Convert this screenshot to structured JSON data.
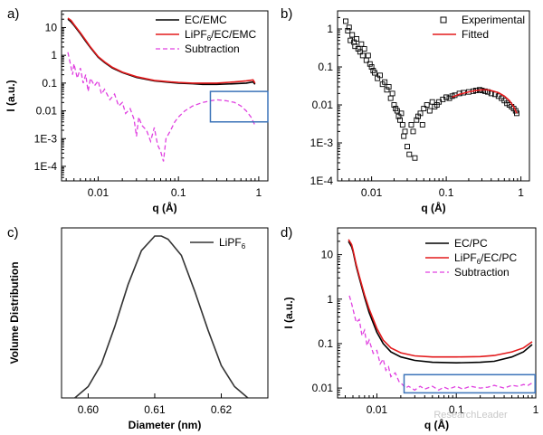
{
  "watermark": "ResearchLeader",
  "chart_data": [
    {
      "id": "a",
      "panel_label": "a)",
      "type": "line",
      "xlabel": "q (Å)",
      "ylabel": "I (a.u.)",
      "xscale": "log",
      "yscale": "log",
      "xlim": [
        0.0035,
        1.3
      ],
      "ylim": [
        3e-05,
        40
      ],
      "xticks": [
        {
          "v": 0.01,
          "label": "0.01"
        },
        {
          "v": 0.1,
          "label": "0.1"
        },
        {
          "v": 1,
          "label": "1"
        }
      ],
      "yticks": [
        {
          "v": 10,
          "label": "10"
        },
        {
          "v": 1,
          "label": "1"
        },
        {
          "v": 0.1,
          "label": "0.1"
        },
        {
          "v": 0.01,
          "label": "0.01"
        },
        {
          "v": 0.001,
          "label": "1E-3"
        },
        {
          "v": 0.0001,
          "label": "1E-4"
        }
      ],
      "legend_position": "top-right",
      "highlight_box": {
        "x": [
          0.25,
          1.3
        ],
        "y": [
          0.004,
          0.05
        ],
        "color": "#3b73b9"
      },
      "series": [
        {
          "name": "EC/EMC",
          "color": "#000000",
          "style": "solid",
          "x": [
            0.0042,
            0.0046,
            0.005,
            0.006,
            0.007,
            0.008,
            0.01,
            0.012,
            0.015,
            0.02,
            0.03,
            0.05,
            0.08,
            0.1,
            0.15,
            0.2,
            0.3,
            0.5,
            0.7,
            0.85,
            0.9
          ],
          "y": [
            20,
            16,
            12,
            6,
            3.2,
            1.9,
            0.85,
            0.55,
            0.35,
            0.24,
            0.16,
            0.12,
            0.105,
            0.1,
            0.095,
            0.09,
            0.09,
            0.095,
            0.1,
            0.11,
            0.09
          ]
        },
        {
          "name": "LiPF6/EC/EMC",
          "label_main": "LiPF",
          "label_sub": "6",
          "label_tail": "/EC/EMC",
          "color": "#e31a1c",
          "style": "solid",
          "x": [
            0.0042,
            0.0046,
            0.005,
            0.006,
            0.007,
            0.008,
            0.01,
            0.012,
            0.015,
            0.02,
            0.03,
            0.05,
            0.08,
            0.1,
            0.15,
            0.2,
            0.3,
            0.5,
            0.7,
            0.85,
            0.9
          ],
          "y": [
            22,
            18,
            13,
            6.5,
            3.5,
            2.0,
            0.9,
            0.58,
            0.37,
            0.25,
            0.17,
            0.125,
            0.11,
            0.105,
            0.1,
            0.1,
            0.1,
            0.11,
            0.12,
            0.13,
            0.1
          ]
        },
        {
          "name": "Subtraction",
          "color": "#e040e0",
          "style": "dashed",
          "x": [
            0.0042,
            0.0045,
            0.0048,
            0.005,
            0.0055,
            0.006,
            0.0065,
            0.007,
            0.0075,
            0.008,
            0.009,
            0.01,
            0.011,
            0.012,
            0.014,
            0.016,
            0.018,
            0.02,
            0.022,
            0.025,
            0.028,
            0.03,
            0.032,
            0.035,
            0.04,
            0.045,
            0.05,
            0.055,
            0.06,
            0.065,
            0.07,
            0.08,
            0.09,
            0.1,
            0.12,
            0.15,
            0.2,
            0.25,
            0.3,
            0.4,
            0.5,
            0.6,
            0.7,
            0.8,
            0.9
          ],
          "y": [
            1.3,
            0.5,
            0.2,
            0.5,
            0.15,
            0.35,
            0.1,
            0.2,
            0.05,
            0.15,
            0.08,
            0.12,
            0.04,
            0.06,
            0.025,
            0.04,
            0.015,
            0.02,
            0.008,
            0.012,
            0.005,
            0.0012,
            0.006,
            0.003,
            0.002,
            0.0008,
            0.0025,
            0.0006,
            0.00035,
            0.00015,
            0.001,
            0.002,
            0.004,
            0.006,
            0.01,
            0.015,
            0.02,
            0.023,
            0.025,
            0.023,
            0.02,
            0.015,
            0.01,
            0.006,
            0.003
          ]
        }
      ]
    },
    {
      "id": "b",
      "panel_label": "b)",
      "type": "scatter",
      "xlabel": "q (Å)",
      "ylabel": "",
      "xscale": "log",
      "yscale": "log",
      "xlim": [
        0.0035,
        1.3
      ],
      "ylim": [
        0.0001,
        3
      ],
      "xticks": [
        {
          "v": 0.01,
          "label": "0.01"
        },
        {
          "v": 0.1,
          "label": "0.1"
        },
        {
          "v": 1,
          "label": "1"
        }
      ],
      "yticks": [
        {
          "v": 1,
          "label": "1"
        },
        {
          "v": 0.1,
          "label": "0.1"
        },
        {
          "v": 0.01,
          "label": "0.01"
        },
        {
          "v": 0.001,
          "label": "1E-3"
        },
        {
          "v": 0.0001,
          "label": "1E-4"
        }
      ],
      "legend_position": "top-right",
      "series": [
        {
          "name": "Experimental",
          "color": "#000000",
          "style": "marker-square",
          "x": [
            0.0045,
            0.0048,
            0.005,
            0.0052,
            0.0055,
            0.0058,
            0.006,
            0.0063,
            0.0066,
            0.007,
            0.0073,
            0.0076,
            0.008,
            0.0085,
            0.009,
            0.0095,
            0.01,
            0.0105,
            0.011,
            0.012,
            0.013,
            0.014,
            0.015,
            0.016,
            0.017,
            0.018,
            0.019,
            0.02,
            0.021,
            0.022,
            0.023,
            0.024,
            0.025,
            0.026,
            0.027,
            0.028,
            0.03,
            0.032,
            0.034,
            0.036,
            0.038,
            0.04,
            0.042,
            0.045,
            0.048,
            0.05,
            0.055,
            0.06,
            0.065,
            0.07,
            0.075,
            0.08,
            0.09,
            0.1,
            0.11,
            0.12,
            0.13,
            0.15,
            0.17,
            0.2,
            0.23,
            0.25,
            0.28,
            0.3,
            0.33,
            0.36,
            0.4,
            0.45,
            0.5,
            0.55,
            0.6,
            0.65,
            0.7,
            0.75,
            0.8,
            0.85,
            0.88
          ],
          "y": [
            1.6,
            0.9,
            1.1,
            0.5,
            0.7,
            0.45,
            0.35,
            0.55,
            0.3,
            0.25,
            0.4,
            0.2,
            0.3,
            0.15,
            0.2,
            0.12,
            0.1,
            0.08,
            0.07,
            0.05,
            0.06,
            0.035,
            0.04,
            0.025,
            0.03,
            0.015,
            0.02,
            0.01,
            0.008,
            0.007,
            0.005,
            0.004,
            0.006,
            0.003,
            0.0015,
            0.002,
            0.0008,
            0.0005,
            0.003,
            0.002,
            0.0004,
            0.004,
            0.005,
            0.006,
            0.003,
            0.008,
            0.01,
            0.007,
            0.012,
            0.009,
            0.01,
            0.012,
            0.014,
            0.016,
            0.015,
            0.017,
            0.018,
            0.02,
            0.021,
            0.022,
            0.023,
            0.024,
            0.025,
            0.024,
            0.023,
            0.022,
            0.02,
            0.019,
            0.017,
            0.015,
            0.013,
            0.011,
            0.01,
            0.009,
            0.008,
            0.007,
            0.006
          ]
        },
        {
          "name": "Fitted",
          "color": "#e31a1c",
          "style": "solid",
          "x": [
            0.12,
            0.15,
            0.2,
            0.25,
            0.3,
            0.35,
            0.4,
            0.5,
            0.6,
            0.7,
            0.8,
            0.88
          ],
          "y": [
            0.016,
            0.019,
            0.022,
            0.024,
            0.025,
            0.025,
            0.024,
            0.021,
            0.017,
            0.013,
            0.009,
            0.006
          ]
        }
      ]
    },
    {
      "id": "c",
      "panel_label": "c)",
      "type": "line",
      "xlabel": "Diameter (nm)",
      "ylabel": "Volume Distribution",
      "xscale": "linear",
      "yscale": "linear",
      "xlim": [
        0.596,
        0.627
      ],
      "ylim": [
        0,
        1.05
      ],
      "xticks": [
        {
          "v": 0.6,
          "label": "0.60"
        },
        {
          "v": 0.61,
          "label": "0.61"
        },
        {
          "v": 0.62,
          "label": "0.62"
        }
      ],
      "yticks": [],
      "legend_position": "top-right",
      "series": [
        {
          "name": "LiPF6",
          "label_main": "LiPF",
          "label_sub": "6",
          "label_tail": "",
          "color": "#333333",
          "style": "solid",
          "x": [
            0.598,
            0.6,
            0.602,
            0.604,
            0.606,
            0.608,
            0.61,
            0.611,
            0.612,
            0.614,
            0.616,
            0.618,
            0.62,
            0.622,
            0.624
          ],
          "y": [
            0.0,
            0.07,
            0.21,
            0.44,
            0.7,
            0.91,
            1.0,
            1.0,
            0.98,
            0.88,
            0.66,
            0.42,
            0.2,
            0.07,
            0.0
          ]
        }
      ]
    },
    {
      "id": "d",
      "panel_label": "d)",
      "type": "line",
      "xlabel": "q (Å)",
      "ylabel": "I (a.u.)",
      "xscale": "log",
      "yscale": "log",
      "xlim": [
        0.0032,
        1.0
      ],
      "ylim": [
        0.006,
        40
      ],
      "xticks": [
        {
          "v": 0.01,
          "label": "0.01"
        },
        {
          "v": 0.1,
          "label": "0.1"
        },
        {
          "v": 1,
          "label": "1"
        }
      ],
      "yticks": [
        {
          "v": 10,
          "label": "10"
        },
        {
          "v": 1,
          "label": "1"
        },
        {
          "v": 0.1,
          "label": "0.1"
        },
        {
          "v": 0.01,
          "label": "0.01"
        }
      ],
      "legend_position": "top-right",
      "highlight_box": {
        "x": [
          0.022,
          0.98
        ],
        "y": [
          0.0078,
          0.02
        ],
        "color": "#3b73b9"
      },
      "series": [
        {
          "name": "EC/PC",
          "color": "#000000",
          "style": "solid",
          "x": [
            0.0044,
            0.0048,
            0.005,
            0.0055,
            0.006,
            0.007,
            0.008,
            0.01,
            0.012,
            0.015,
            0.02,
            0.03,
            0.05,
            0.1,
            0.2,
            0.3,
            0.5,
            0.7,
            0.9
          ],
          "y": [
            20,
            15,
            12,
            5.5,
            3.0,
            1.1,
            0.5,
            0.18,
            0.1,
            0.065,
            0.05,
            0.042,
            0.038,
            0.037,
            0.038,
            0.04,
            0.05,
            0.065,
            0.095
          ]
        },
        {
          "name": "LiPF6/EC/PC",
          "label_main": "LiPF",
          "label_sub": "6",
          "label_tail": "/EC/PC",
          "color": "#e31a1c",
          "style": "solid",
          "x": [
            0.0044,
            0.0048,
            0.005,
            0.0055,
            0.006,
            0.007,
            0.008,
            0.01,
            0.012,
            0.015,
            0.02,
            0.03,
            0.05,
            0.1,
            0.2,
            0.3,
            0.5,
            0.7,
            0.9
          ],
          "y": [
            22,
            17,
            13,
            6.0,
            3.3,
            1.25,
            0.6,
            0.22,
            0.12,
            0.08,
            0.062,
            0.053,
            0.05,
            0.05,
            0.051,
            0.054,
            0.065,
            0.08,
            0.11
          ]
        },
        {
          "name": "Subtraction",
          "color": "#e040e0",
          "style": "dashed",
          "x": [
            0.0045,
            0.0048,
            0.005,
            0.0055,
            0.006,
            0.0065,
            0.007,
            0.0075,
            0.008,
            0.009,
            0.01,
            0.011,
            0.012,
            0.013,
            0.014,
            0.015,
            0.017,
            0.019,
            0.021,
            0.023,
            0.025,
            0.03,
            0.035,
            0.04,
            0.05,
            0.06,
            0.07,
            0.08,
            0.1,
            0.12,
            0.15,
            0.2,
            0.25,
            0.3,
            0.4,
            0.5,
            0.6,
            0.7,
            0.8,
            0.9
          ],
          "y": [
            1.2,
            0.8,
            0.6,
            0.3,
            0.35,
            0.15,
            0.2,
            0.09,
            0.12,
            0.06,
            0.07,
            0.035,
            0.045,
            0.025,
            0.03,
            0.018,
            0.022,
            0.014,
            0.012,
            0.01,
            0.011,
            0.009,
            0.011,
            0.0095,
            0.011,
            0.009,
            0.0105,
            0.0095,
            0.011,
            0.0095,
            0.011,
            0.01,
            0.0105,
            0.0115,
            0.01,
            0.0115,
            0.011,
            0.012,
            0.0115,
            0.013
          ]
        }
      ]
    }
  ]
}
